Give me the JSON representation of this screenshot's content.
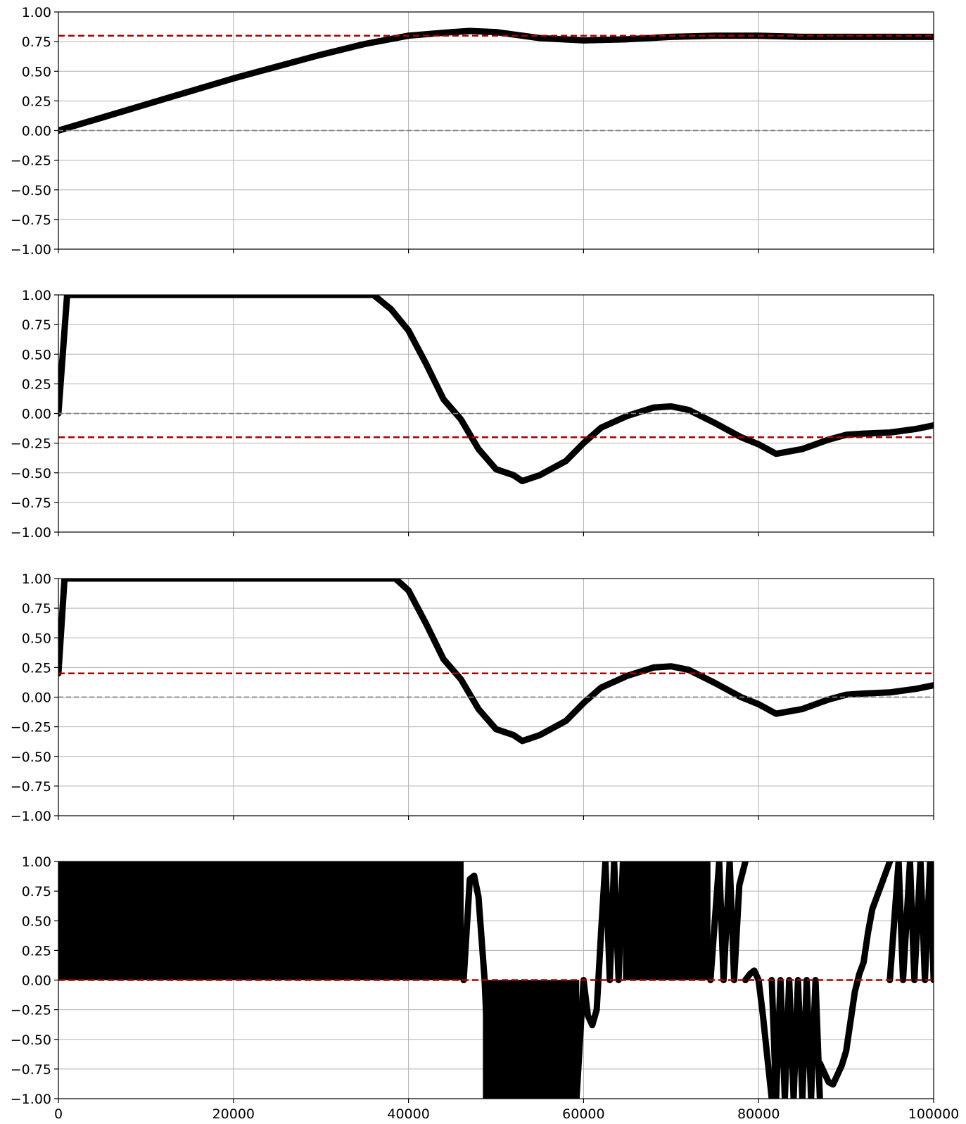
{
  "chart_data": [
    {
      "type": "line",
      "title": "",
      "xlabel": "",
      "ylabel": "",
      "xlim": [
        0,
        100000
      ],
      "ylim": [
        -1,
        1
      ],
      "grid": true,
      "x_tick_labels_visible": false,
      "colors": {
        "series": "#000000",
        "reference": "#aa0000",
        "zero": "#808080"
      },
      "reference_lines": [
        {
          "y": 0.8,
          "style": "dashed",
          "color": "#aa0000"
        },
        {
          "y": 0.0,
          "style": "dashed",
          "color": "#808080"
        }
      ],
      "series": [
        {
          "x": [
            0,
            5000,
            10000,
            15000,
            20000,
            25000,
            30000,
            35000,
            40000,
            45000,
            47000,
            50000,
            55000,
            60000,
            65000,
            70000,
            75000,
            80000,
            85000,
            90000,
            95000,
            100000
          ],
          "y": [
            0.0,
            0.11,
            0.22,
            0.33,
            0.44,
            0.54,
            0.64,
            0.73,
            0.8,
            0.83,
            0.84,
            0.83,
            0.78,
            0.76,
            0.77,
            0.79,
            0.8,
            0.8,
            0.79,
            0.79,
            0.79,
            0.79
          ]
        }
      ]
    },
    {
      "type": "line",
      "title": "",
      "xlabel": "",
      "ylabel": "",
      "xlim": [
        0,
        100000
      ],
      "ylim": [
        -1,
        1
      ],
      "grid": true,
      "x_tick_labels_visible": false,
      "colors": {
        "series": "#000000",
        "reference": "#aa0000",
        "zero": "#808080"
      },
      "reference_lines": [
        {
          "y": -0.2,
          "style": "dashed",
          "color": "#aa0000"
        },
        {
          "y": 0.0,
          "style": "dashed",
          "color": "#808080"
        }
      ],
      "series": [
        {
          "x": [
            0,
            1000,
            5000,
            20000,
            30000,
            36000,
            38000,
            40000,
            42000,
            44000,
            46000,
            48000,
            50000,
            52000,
            53000,
            55000,
            58000,
            60000,
            62000,
            65000,
            68000,
            70000,
            72000,
            75000,
            78000,
            80000,
            82000,
            85000,
            88000,
            90000,
            92000,
            95000,
            98000,
            100000
          ],
          "y": [
            0.0,
            1.0,
            1.0,
            1.0,
            1.0,
            1.0,
            0.88,
            0.7,
            0.42,
            0.12,
            -0.05,
            -0.3,
            -0.47,
            -0.52,
            -0.57,
            -0.52,
            -0.4,
            -0.25,
            -0.12,
            -0.02,
            0.05,
            0.06,
            0.03,
            -0.08,
            -0.2,
            -0.26,
            -0.34,
            -0.3,
            -0.22,
            -0.18,
            -0.17,
            -0.16,
            -0.13,
            -0.1
          ]
        }
      ]
    },
    {
      "type": "line",
      "title": "",
      "xlabel": "",
      "ylabel": "",
      "xlim": [
        0,
        100000
      ],
      "ylim": [
        -1,
        1
      ],
      "grid": true,
      "x_tick_labels_visible": false,
      "colors": {
        "series": "#000000",
        "reference": "#aa0000",
        "zero": "#808080"
      },
      "reference_lines": [
        {
          "y": 0.2,
          "style": "dashed",
          "color": "#aa0000"
        },
        {
          "y": 0.0,
          "style": "dashed",
          "color": "#808080"
        }
      ],
      "series": [
        {
          "x": [
            0,
            700,
            38500,
            40000,
            42000,
            44000,
            46000,
            48000,
            50000,
            52000,
            53000,
            55000,
            58000,
            60000,
            62000,
            65000,
            68000,
            70000,
            72000,
            75000,
            78000,
            80000,
            82000,
            85000,
            88000,
            90000,
            92000,
            95000,
            98000,
            100000
          ],
          "y": [
            0.2,
            1.0,
            1.0,
            0.9,
            0.62,
            0.32,
            0.15,
            -0.1,
            -0.27,
            -0.32,
            -0.37,
            -0.32,
            -0.2,
            -0.05,
            0.08,
            0.18,
            0.25,
            0.26,
            0.23,
            0.12,
            0.0,
            -0.06,
            -0.14,
            -0.1,
            -0.02,
            0.02,
            0.03,
            0.04,
            0.07,
            0.1
          ]
        }
      ]
    },
    {
      "type": "line",
      "title": "",
      "xlabel": "",
      "ylabel": "",
      "xlim": [
        0,
        100000
      ],
      "ylim": [
        -1,
        1
      ],
      "grid": true,
      "x_tick_labels_visible": true,
      "colors": {
        "series": "#000000",
        "reference": "#aa0000",
        "zero": "#808080"
      },
      "reference_lines": [
        {
          "y": 0.0,
          "style": "dashed",
          "color": "#aa0000"
        }
      ],
      "filled_regions": [
        {
          "x": [
            0,
            46300
          ],
          "y": [
            0.0,
            1.0
          ]
        },
        {
          "x": [
            48500,
            59500
          ],
          "y": [
            -1.0,
            0.0
          ]
        },
        {
          "x": [
            64500,
            74500
          ],
          "y": [
            0.0,
            1.0
          ]
        }
      ],
      "series": [
        {
          "x": [
            46300,
            47000,
            47500,
            48000,
            48700,
            49000,
            49500
          ],
          "y": [
            0.0,
            0.85,
            0.88,
            0.7,
            0.0,
            -0.5,
            -1.0
          ]
        },
        {
          "x": [
            59200,
            60000,
            60500,
            61000,
            61500,
            62000
          ],
          "y": [
            -1.0,
            0.0,
            -0.3,
            -0.38,
            -0.25,
            0.4
          ]
        },
        {
          "x": [
            62000,
            62500,
            63000,
            63500,
            64000,
            64500
          ],
          "y": [
            0.4,
            1.0,
            0.0,
            1.0,
            0.0,
            1.0
          ]
        },
        {
          "x": [
            74500,
            75500,
            76000,
            76700,
            77200,
            77800,
            78500
          ],
          "y": [
            0.0,
            1.0,
            0.0,
            1.0,
            0.0,
            0.8,
            1.0
          ]
        },
        {
          "x": [
            78500,
            79000,
            79500,
            80000,
            80500,
            81000,
            81500
          ],
          "y": [
            0.0,
            0.05,
            0.08,
            0.0,
            -0.3,
            -0.65,
            -1.0
          ]
        },
        {
          "x": [
            81500,
            82000,
            82500,
            83000,
            83500,
            84000,
            84500,
            85000,
            85500,
            86000,
            86500,
            87000
          ],
          "y": [
            0.0,
            -1.0,
            0.0,
            -1.0,
            0.0,
            -1.0,
            0.0,
            -1.0,
            0.0,
            -1.0,
            0.0,
            -1.0
          ]
        },
        {
          "x": [
            87000,
            88000,
            88500,
            89000,
            89500,
            90000,
            90500,
            91000,
            91500,
            92000,
            92500,
            93000,
            94000,
            95000
          ],
          "y": [
            -0.7,
            -0.86,
            -0.88,
            -0.8,
            -0.72,
            -0.6,
            -0.35,
            -0.1,
            0.05,
            0.15,
            0.4,
            0.6,
            0.8,
            1.0
          ]
        },
        {
          "x": [
            95000,
            96000,
            96500,
            97300,
            97800,
            98500,
            99000,
            99600,
            100000
          ],
          "y": [
            0.0,
            1.0,
            0.0,
            1.0,
            0.0,
            1.0,
            0.0,
            1.0,
            0.0
          ]
        }
      ]
    }
  ],
  "y_tick_labels": [
    "1.00",
    "0.75",
    "0.50",
    "0.25",
    "0.00",
    "−0.25",
    "−0.50",
    "−0.75",
    "−1.00"
  ],
  "x_tick_labels": [
    "0",
    "20000",
    "40000",
    "60000",
    "80000",
    "100000"
  ]
}
